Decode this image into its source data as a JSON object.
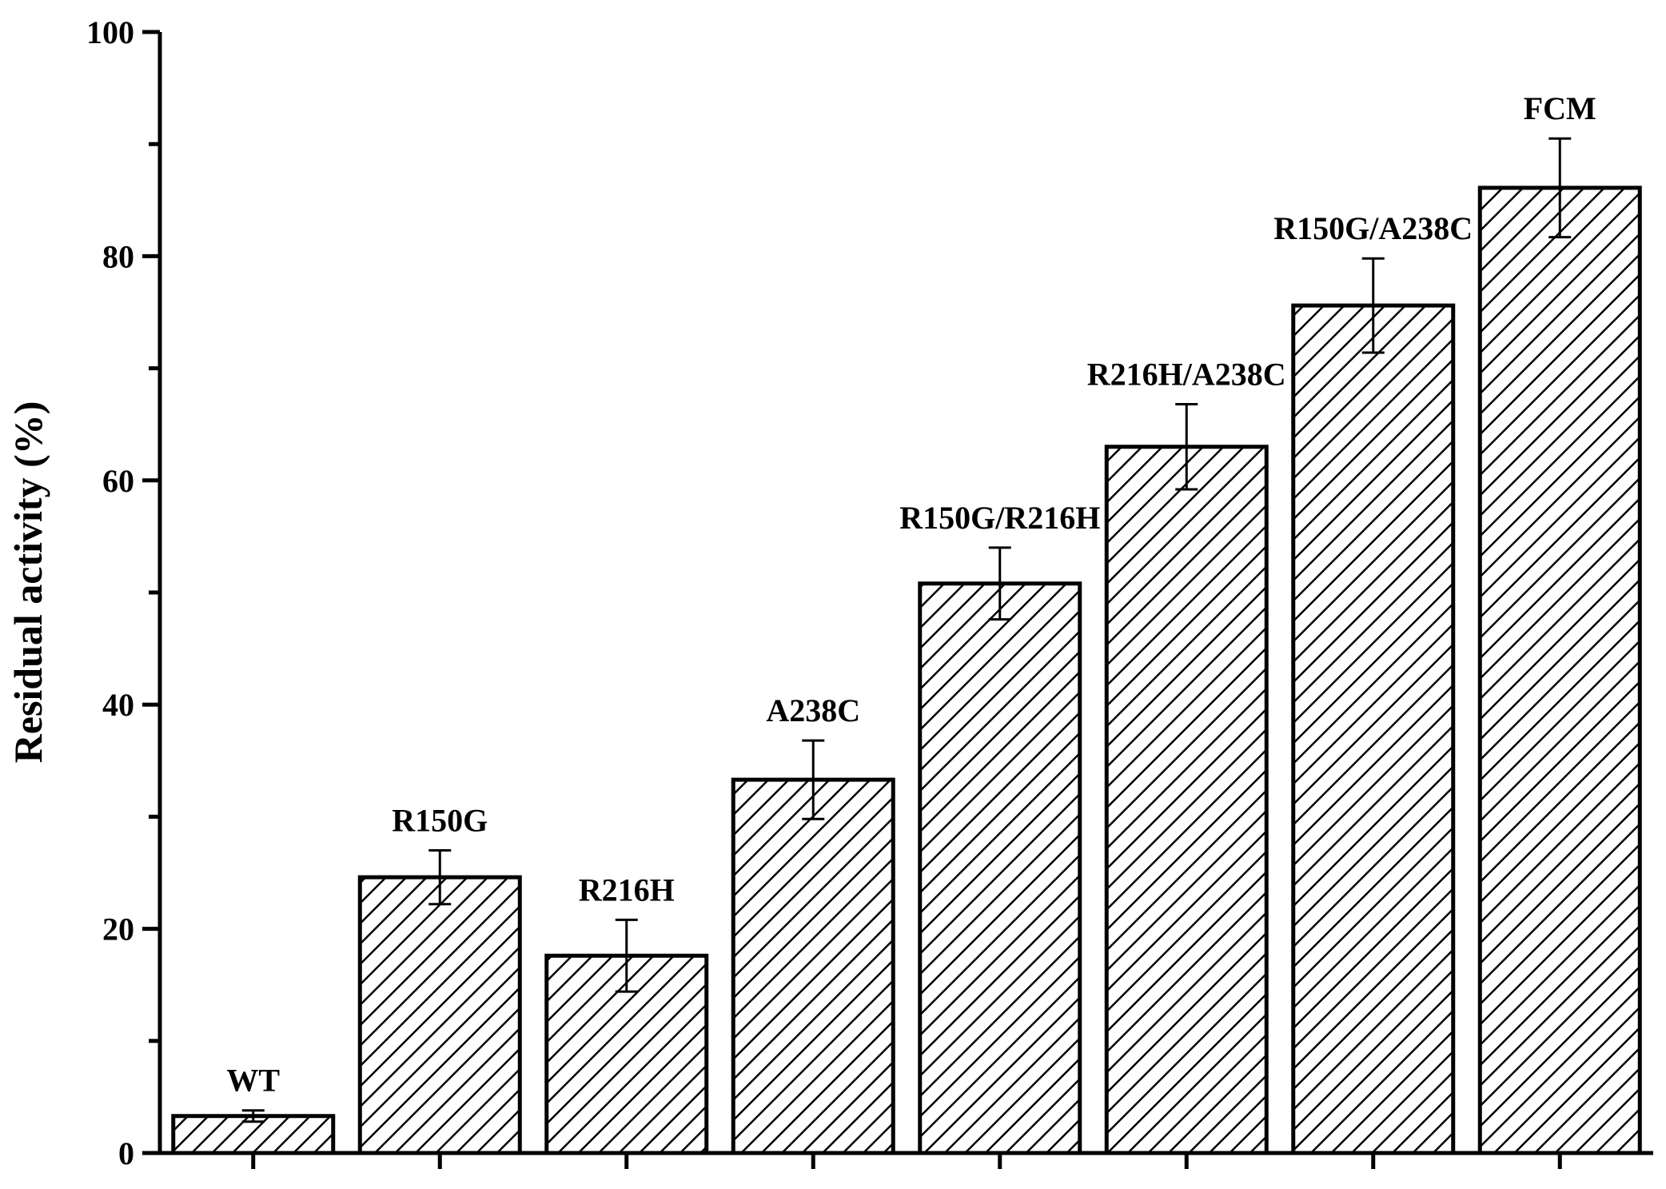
{
  "chart_data": {
    "type": "bar",
    "title": "",
    "xlabel": "",
    "ylabel": "Residual activity (%)",
    "ylim": [
      0,
      100
    ],
    "yticks": [
      0,
      20,
      40,
      60,
      80,
      100
    ],
    "grid": false,
    "legend": "none",
    "bar_fill": "diagonal-hatch",
    "categories": [
      "WT",
      "R150G",
      "R216H",
      "A238C",
      "R150G/R216H",
      "R216H/A238C",
      "R150G/A238C",
      "FCM"
    ],
    "values": [
      3.3,
      24.6,
      17.6,
      33.3,
      50.8,
      63.0,
      75.6,
      86.1
    ],
    "errors": [
      0.5,
      2.4,
      3.2,
      3.5,
      3.2,
      3.8,
      4.2,
      4.4
    ]
  },
  "colors": {
    "bar_stroke": "#000000",
    "hatch": "#000000",
    "background": "#ffffff"
  }
}
